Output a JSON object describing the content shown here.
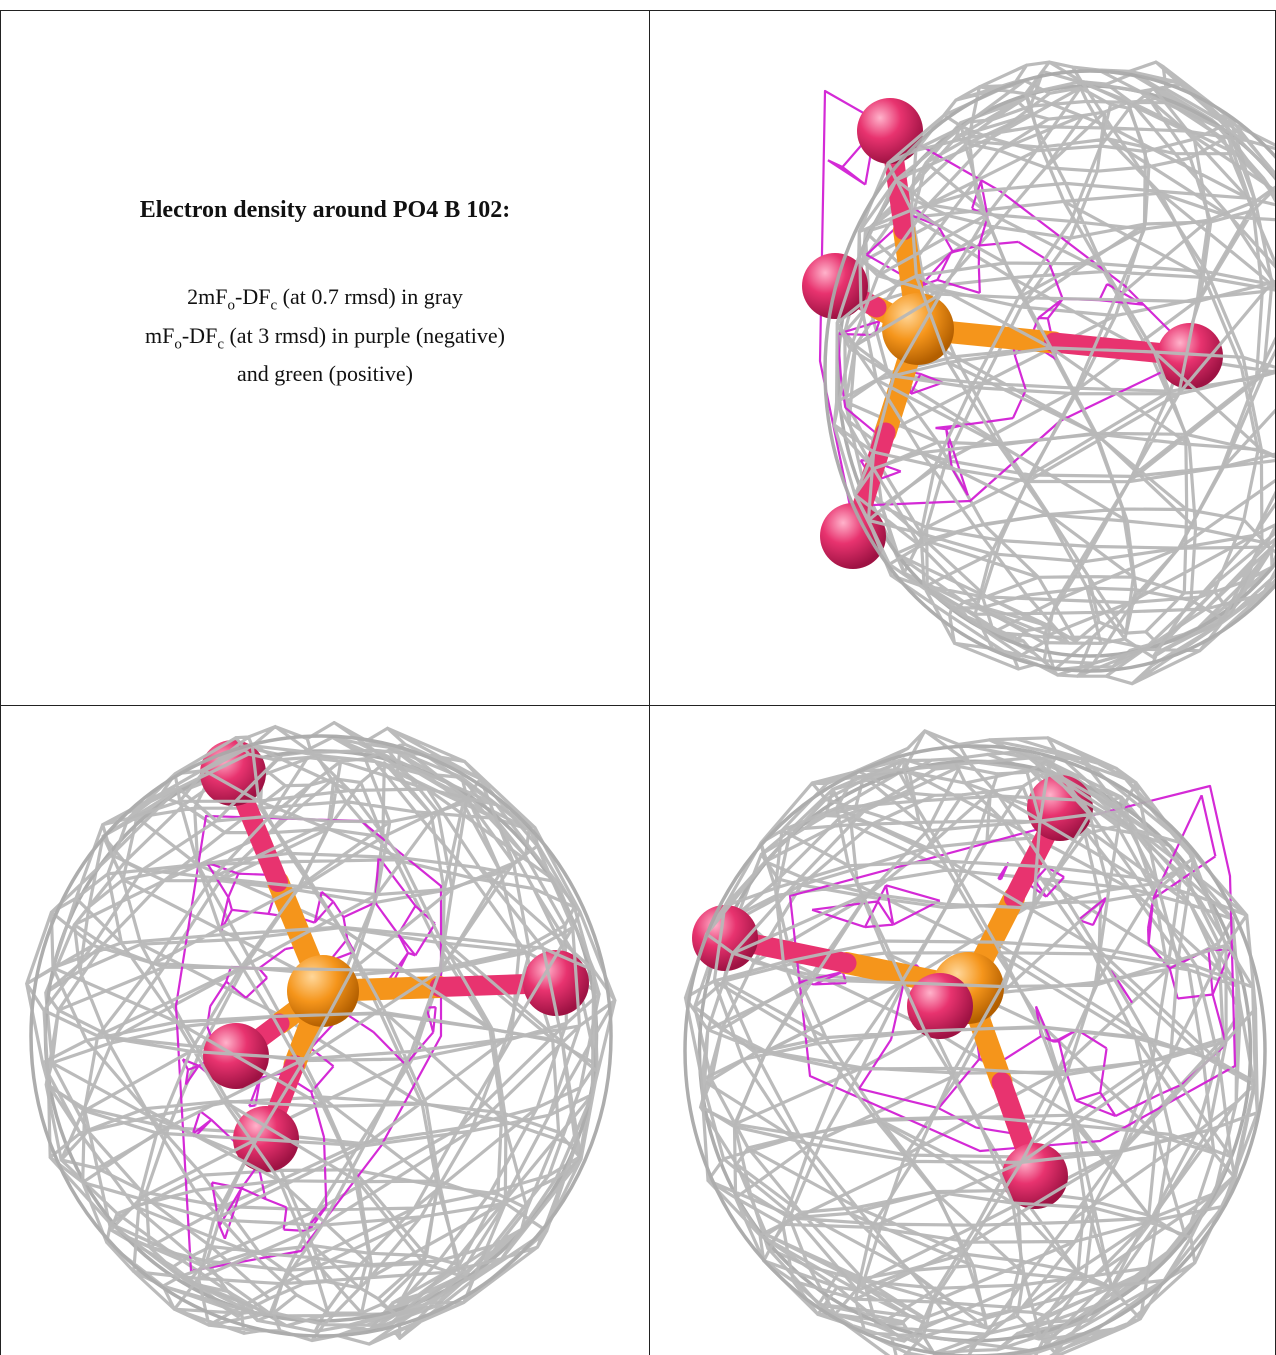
{
  "caption": {
    "title": "Electron density around PO4 B 102:",
    "line1_prefix": "2mF",
    "line1_sub1": "o",
    "line1_mid": "-DF",
    "line1_sub2": "c",
    "line1_suffix": " (at 0.7 rmsd) in gray",
    "line2_prefix": "mF",
    "line2_sub1": "o",
    "line2_mid": "-DF",
    "line2_sub2": "c",
    "line2_suffix": " (at 3 rmsd) in purple (negative)",
    "line3": "and green (positive)"
  },
  "colors": {
    "map_2fofc": "#b8b8b8",
    "map_fofc_negative": "#d21fd4",
    "oxygen": "#e8336f",
    "phosphorus": "#f5951b",
    "table_border": "#222222"
  },
  "views": [
    {
      "name": "top-right"
    },
    {
      "name": "bottom-left"
    },
    {
      "name": "bottom-right"
    }
  ]
}
